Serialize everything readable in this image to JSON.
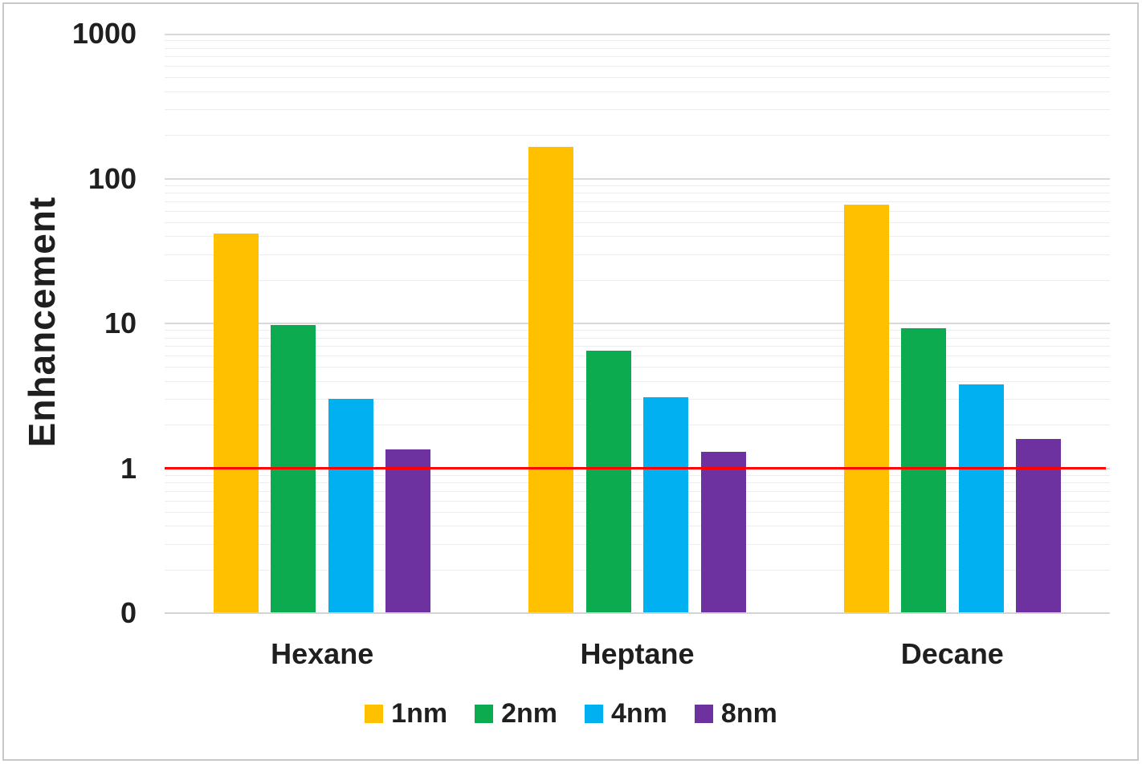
{
  "chart_data": {
    "type": "bar",
    "title": "",
    "xlabel": "",
    "ylabel": "Enhancement",
    "categories": [
      "Hexane",
      "Heptane",
      "Decane"
    ],
    "series": [
      {
        "name": "1nm",
        "color": "#FFC000",
        "values": [
          42,
          165,
          66
        ]
      },
      {
        "name": "2nm",
        "color": "#0CAB50",
        "values": [
          9.8,
          6.5,
          9.3
        ]
      },
      {
        "name": "4nm",
        "color": "#00B0F0",
        "values": [
          3.0,
          3.1,
          3.8
        ]
      },
      {
        "name": "8nm",
        "color": "#6E32A0",
        "values": [
          1.35,
          1.3,
          1.6
        ]
      }
    ],
    "yaxis": {
      "scale": "log",
      "min": 0.1,
      "max": 1000,
      "ticks": [
        {
          "label": "1000",
          "value": 1000
        },
        {
          "label": "100",
          "value": 100
        },
        {
          "label": "10",
          "value": 10
        },
        {
          "label": "1",
          "value": 1
        },
        {
          "label": "0",
          "value": 0
        }
      ]
    },
    "reference_line": {
      "value": 1,
      "color": "#FF0000"
    },
    "legend": {
      "position": "bottom",
      "entries": [
        "1nm",
        "2nm",
        "4nm",
        "8nm"
      ]
    },
    "grid": {
      "major": true,
      "minor": true
    }
  },
  "colors": {
    "grid_major": "#D9D9D9",
    "grid_minor": "#EDEDED",
    "axis_line": "#D3D3D3",
    "frame_border": "#C9C9C9",
    "text": "#1F1F1F",
    "background": "#FFFFFF"
  }
}
